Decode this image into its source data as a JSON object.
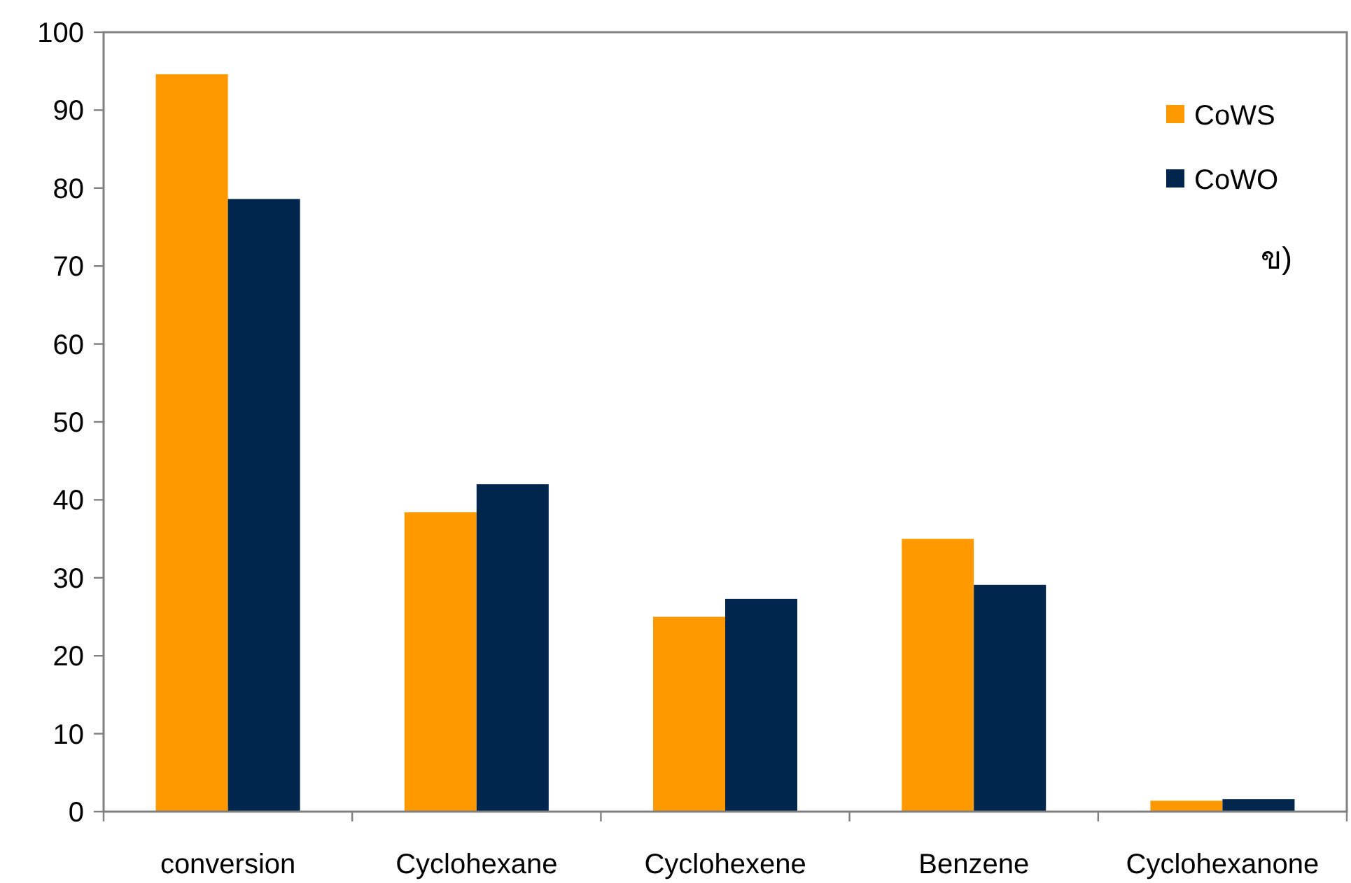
{
  "chart_data": {
    "type": "bar",
    "categories": [
      "conversion",
      "Cyclohexane",
      "Cyclohexene",
      "Benzene",
      "Cyclohexanone"
    ],
    "series": [
      {
        "name": "CoWS",
        "color": "#ff9900",
        "values": [
          94.6,
          38.4,
          25.0,
          35.0,
          1.4
        ]
      },
      {
        "name": "CoWO",
        "color": "#00264d",
        "values": [
          78.6,
          42.0,
          27.3,
          29.1,
          1.6
        ]
      }
    ],
    "ylim": [
      0,
      100
    ],
    "yticks": [
      0,
      10,
      20,
      30,
      40,
      50,
      60,
      70,
      80,
      90,
      100
    ],
    "grid": false,
    "legend": "top right",
    "annotations": [
      "ข)"
    ]
  }
}
